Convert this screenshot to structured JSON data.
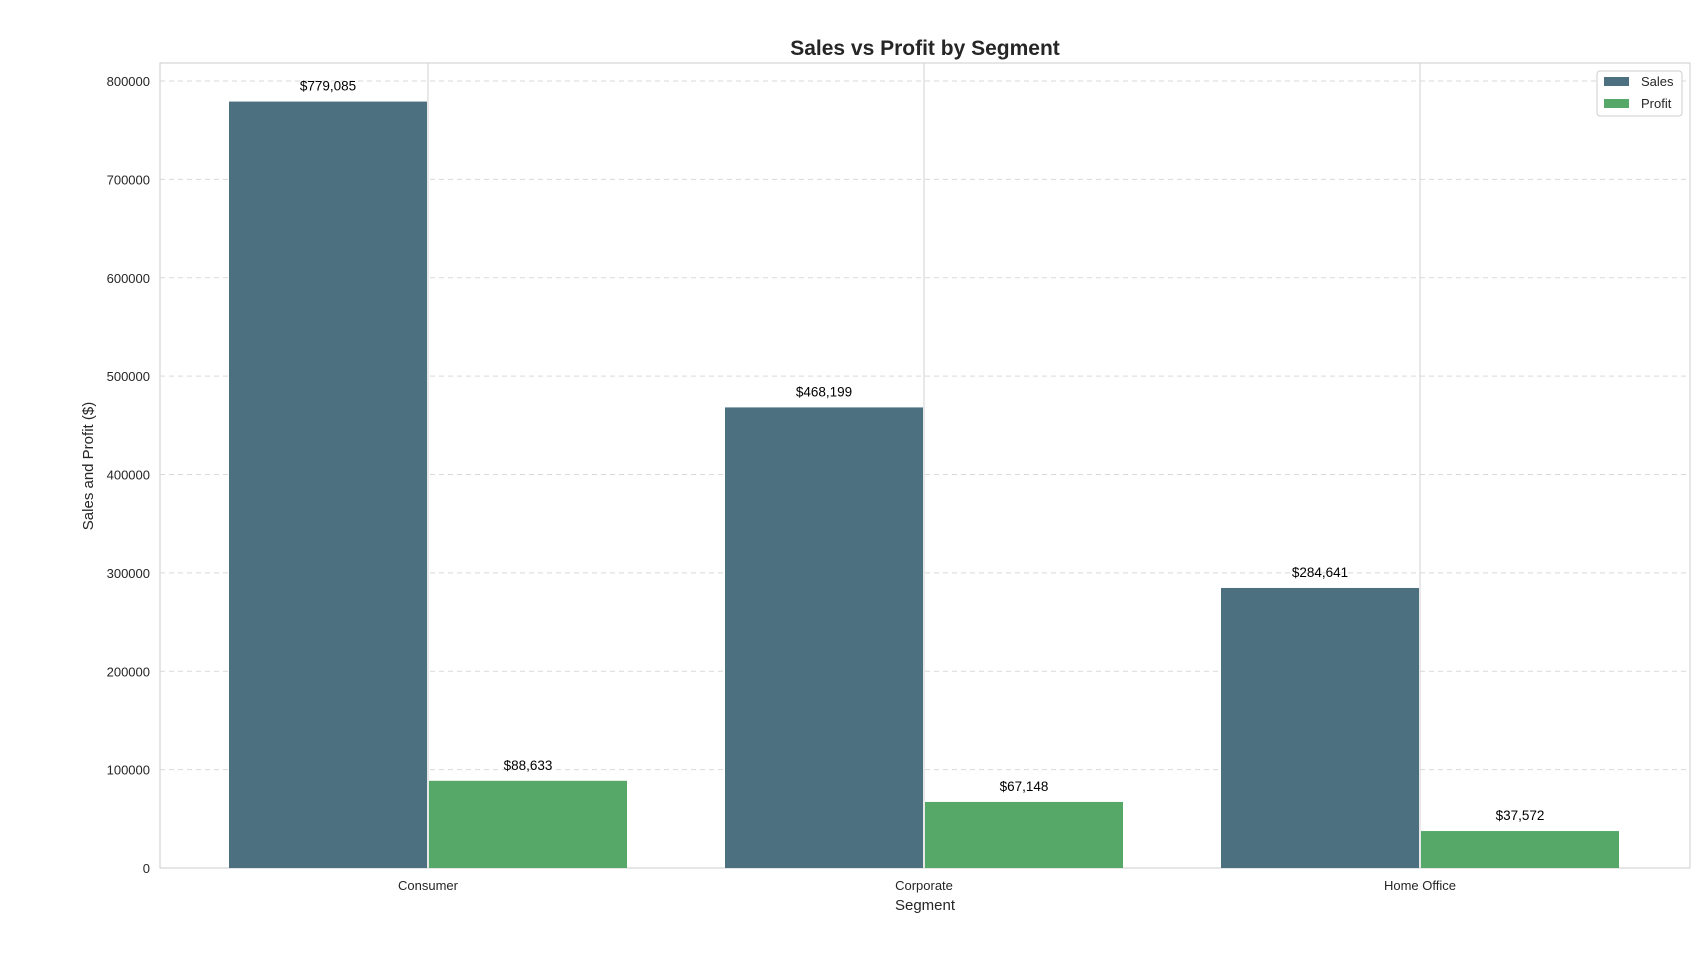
{
  "chart_data": {
    "type": "bar",
    "title": "Sales vs Profit by Segment",
    "xlabel": "Segment",
    "ylabel": "Sales and Profit ($)",
    "categories": [
      "Consumer",
      "Corporate",
      "Home Office"
    ],
    "series": [
      {
        "name": "Sales",
        "color": "#4c7080",
        "values": [
          779085,
          468199,
          284641
        ],
        "labels": [
          "$779,085",
          "$468,199",
          "$284,641"
        ]
      },
      {
        "name": "Profit",
        "color": "#55a868",
        "values": [
          88633,
          67148,
          37572
        ],
        "labels": [
          "$88,633",
          "$67,148",
          "$37,572"
        ]
      }
    ],
    "ylim": [
      0,
      820000
    ],
    "yticks": [
      0,
      100000,
      200000,
      300000,
      400000,
      500000,
      600000,
      700000,
      800000
    ],
    "grid": {
      "y": "dashed",
      "x": "solid"
    },
    "legend_position": "top-right"
  }
}
